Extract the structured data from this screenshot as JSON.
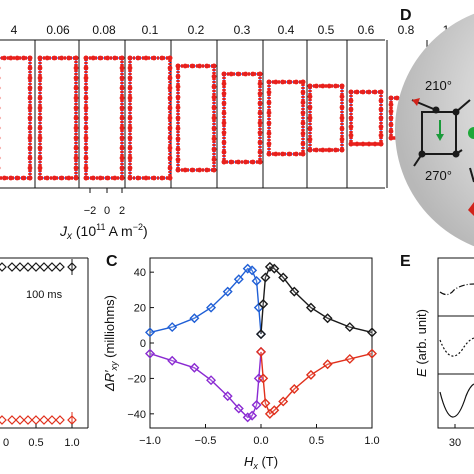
{
  "panel_letters": {
    "C": "C",
    "D": "D",
    "E": "E"
  },
  "panel_b": {
    "column_labels": [
      "4",
      "0.06",
      "0.08",
      "0.1",
      "0.2",
      "0.3",
      "0.4",
      "0.5",
      "0.6",
      "0.8",
      "1"
    ],
    "xaxis_ticks": [
      "−2",
      "0",
      "2"
    ],
    "xaxis_label_J": "J",
    "xaxis_label_x": "x",
    "xaxis_label_units": " (10",
    "xaxis_label_exp": "11",
    "xaxis_label_units2": " A m",
    "xaxis_label_exp2": "−2",
    "xaxis_label_close": ")",
    "colors": {
      "red": "#e8201c",
      "blue": "#2a3ad8"
    }
  },
  "panel_a_bottom": {
    "annotation": "100 ms",
    "xticks": [
      "0.5",
      "1.0"
    ],
    "xtick_partial": "0"
  },
  "panel_d": {
    "angle_labels": [
      "210°",
      "270°"
    ],
    "colors": {
      "sphere": "#cfcfcf",
      "arrow_black": "#111111",
      "arrow_red": "#d0231a",
      "arrow_green": "#1a9a3a"
    }
  },
  "panel_e": {
    "ylabel": "E (arb. unit)",
    "xtick": "30"
  },
  "chart_data": [
    {
      "type": "line",
      "title": "",
      "xlabel": "H_x (T)",
      "ylabel": "ΔR'_xy (milliohms)",
      "xlim": [
        -1.0,
        1.0
      ],
      "ylim": [
        -48,
        48
      ],
      "xticks": [
        "−1.0",
        "−0.5",
        "0.0",
        "0.5",
        "1.0"
      ],
      "yticks": [
        "−40",
        "−20",
        "0",
        "20",
        "40"
      ],
      "grid": false,
      "series": [
        {
          "color": "#1f5fd6",
          "x": [
            -1.0,
            -0.8,
            -0.6,
            -0.45,
            -0.3,
            -0.2,
            -0.12,
            -0.08,
            -0.04,
            -0.02,
            0.0
          ],
          "y": [
            6,
            9,
            14,
            20,
            29,
            36,
            42,
            41,
            35,
            20,
            5
          ]
        },
        {
          "color": "#1a1a1a",
          "x": [
            0.0,
            0.02,
            0.04,
            0.08,
            0.12,
            0.2,
            0.3,
            0.45,
            0.6,
            0.8,
            1.0
          ],
          "y": [
            5,
            22,
            37,
            43,
            42,
            37,
            29,
            20,
            14,
            9,
            6
          ]
        },
        {
          "color": "#8a2ad2",
          "x": [
            -1.0,
            -0.8,
            -0.6,
            -0.45,
            -0.3,
            -0.2,
            -0.12,
            -0.08,
            -0.04,
            -0.02,
            0.0
          ],
          "y": [
            -6,
            -10,
            -14,
            -21,
            -30,
            -37,
            -42,
            -41,
            -35,
            -20,
            -5
          ]
        },
        {
          "color": "#e0301c",
          "x": [
            0.0,
            0.02,
            0.04,
            0.08,
            0.12,
            0.2,
            0.3,
            0.45,
            0.6,
            0.8,
            1.0
          ],
          "y": [
            -5,
            -20,
            -34,
            -40,
            -38,
            -33,
            -26,
            -18,
            -12,
            -9,
            -6
          ]
        }
      ]
    },
    {
      "type": "scatter",
      "title": "",
      "xticks": [
        "0.5",
        "1.0"
      ],
      "series": [
        {
          "color": "#1a1a1a",
          "x": [
            0.0,
            0.1,
            0.2,
            0.3,
            0.4,
            0.5,
            0.6,
            0.8,
            1.0
          ],
          "y": [
            44,
            44,
            44,
            44,
            44,
            44,
            44,
            44,
            44
          ]
        },
        {
          "color": "#e0301c",
          "x": [
            0.0,
            0.1,
            0.2,
            0.3,
            0.4,
            0.5,
            0.6,
            0.8,
            1.0
          ],
          "y": [
            -44,
            -44,
            -44,
            -44,
            -44,
            -44,
            -44,
            -44,
            -44
          ]
        }
      ]
    }
  ]
}
